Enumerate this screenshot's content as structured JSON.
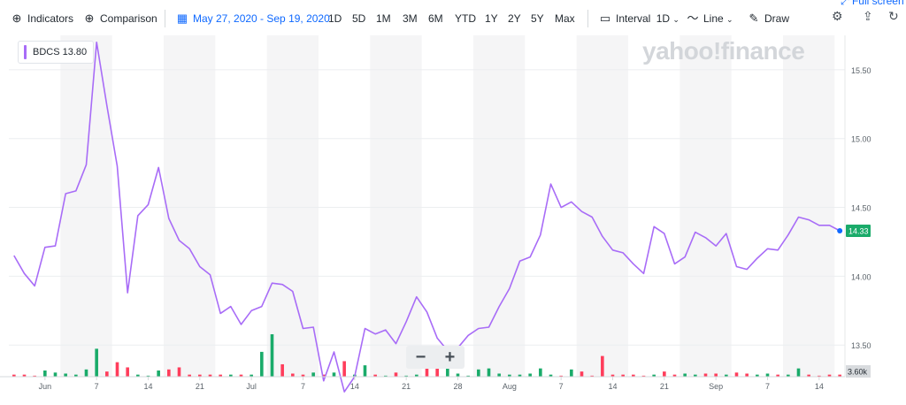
{
  "toolbar": {
    "indicators_label": "Indicators",
    "comparison_label": "Comparison",
    "date_range": "May 27, 2020 - Sep 19, 2020",
    "ranges": [
      "1D",
      "5D",
      "1M",
      "3M",
      "6M",
      "YTD",
      "1Y",
      "2Y",
      "5Y",
      "Max"
    ],
    "interval_label": "Interval",
    "interval_value": "1D",
    "chart_type_label": "Line",
    "draw_label": "Draw",
    "fullscreen_label": "Full screen"
  },
  "legend": {
    "symbol": "BDCS",
    "value": "13.80"
  },
  "watermark": "yahoo!finance",
  "zoom": {
    "minus": "−",
    "plus": "+"
  },
  "colors": {
    "line": "#a86cf7",
    "up": "#1aab6a",
    "down": "#ff3d5b",
    "accent": "#0f69ff",
    "price_tag": "#1aab6a",
    "volume_tag": "#d8dbde"
  },
  "chart_data": {
    "type": "line",
    "title": "",
    "xlabel": "",
    "ylabel": "",
    "ylim": [
      13.27,
      15.75
    ],
    "x_ticks": [
      "Jun",
      "7",
      "14",
      "21",
      "Jul",
      "7",
      "14",
      "21",
      "28",
      "Aug",
      "7",
      "14",
      "21",
      "Sep",
      "7",
      "14"
    ],
    "y_ticks": [
      "15.50",
      "15.00",
      "14.50",
      "14.00",
      "13.50"
    ],
    "current_price_label": "14.33",
    "volume_axis_label": "3.60k",
    "series": [
      {
        "values": [
          14.15,
          14.02,
          13.93,
          14.21,
          14.22,
          14.6,
          14.62,
          14.81,
          15.7,
          15.24,
          14.8,
          13.88,
          14.44,
          14.52,
          14.79,
          14.42,
          14.26,
          14.2,
          14.07,
          14.01,
          13.73,
          13.78,
          13.65,
          13.75,
          13.78,
          13.95,
          13.94,
          13.89,
          13.62,
          13.63,
          13.24,
          13.45,
          13.16,
          13.27,
          13.62,
          13.58,
          13.61,
          13.51,
          13.67,
          13.85,
          13.74,
          13.55,
          13.46,
          13.48,
          13.57,
          13.62,
          13.63,
          13.78,
          13.91,
          14.11,
          14.14,
          14.3,
          14.67,
          14.5,
          14.54,
          14.47,
          14.43,
          14.29,
          14.19,
          14.17,
          14.09,
          14.02,
          14.36,
          14.31,
          14.09,
          14.14,
          14.32,
          14.28,
          14.22,
          14.31,
          14.07,
          14.05,
          14.13,
          14.2,
          14.19,
          14.3,
          14.43,
          14.41,
          14.37,
          14.37,
          14.33
        ]
      }
    ],
    "volume": {
      "values": [
        0.2,
        0.2,
        0.1,
        0.6,
        0.4,
        0.3,
        0.2,
        0.7,
        2.7,
        0.5,
        1.4,
        0.9,
        0.2,
        0.1,
        0.6,
        0.7,
        0.9,
        0.2,
        0.2,
        0.2,
        0.2,
        0.2,
        0.2,
        0.2,
        2.4,
        4.1,
        1.2,
        0.3,
        0.2,
        0.4,
        0.2,
        0.4,
        1.5,
        0.2,
        1.1,
        0.2,
        0.1,
        0.4,
        0.1,
        0.2,
        1.3,
        0.8,
        0.9,
        0.3,
        0.1,
        0.7,
        0.8,
        0.3,
        0.2,
        0.2,
        0.3,
        0.8,
        0.2,
        0.1,
        0.7,
        0.5,
        0.1,
        2.0,
        0.2,
        0.2,
        0.2,
        0.1,
        0.2,
        0.5,
        0.2,
        0.3,
        0.2,
        0.3,
        0.3,
        0.2,
        0.4,
        0.3,
        0.2,
        0.3,
        0.2,
        0.2,
        0.8,
        0.2,
        0.1,
        0.2,
        0.2
      ],
      "direction": [
        "down",
        "down",
        "down",
        "up",
        "up",
        "up",
        "up",
        "up",
        "up",
        "down",
        "down",
        "down",
        "up",
        "up",
        "up",
        "down",
        "down",
        "down",
        "down",
        "down",
        "down",
        "up",
        "down",
        "up",
        "up",
        "up",
        "down",
        "down",
        "down",
        "up",
        "down",
        "up",
        "down",
        "up",
        "up",
        "down",
        "up",
        "down",
        "up",
        "up",
        "down",
        "down",
        "up",
        "up",
        "up",
        "up",
        "up",
        "up",
        "up",
        "up",
        "up",
        "up",
        "up",
        "down",
        "up",
        "down",
        "down",
        "down",
        "down",
        "down",
        "down",
        "down",
        "up",
        "down",
        "down",
        "up",
        "up",
        "down",
        "down",
        "up",
        "down",
        "down",
        "up",
        "up",
        "down",
        "up",
        "up",
        "down",
        "down",
        "down",
        "down"
      ]
    }
  }
}
